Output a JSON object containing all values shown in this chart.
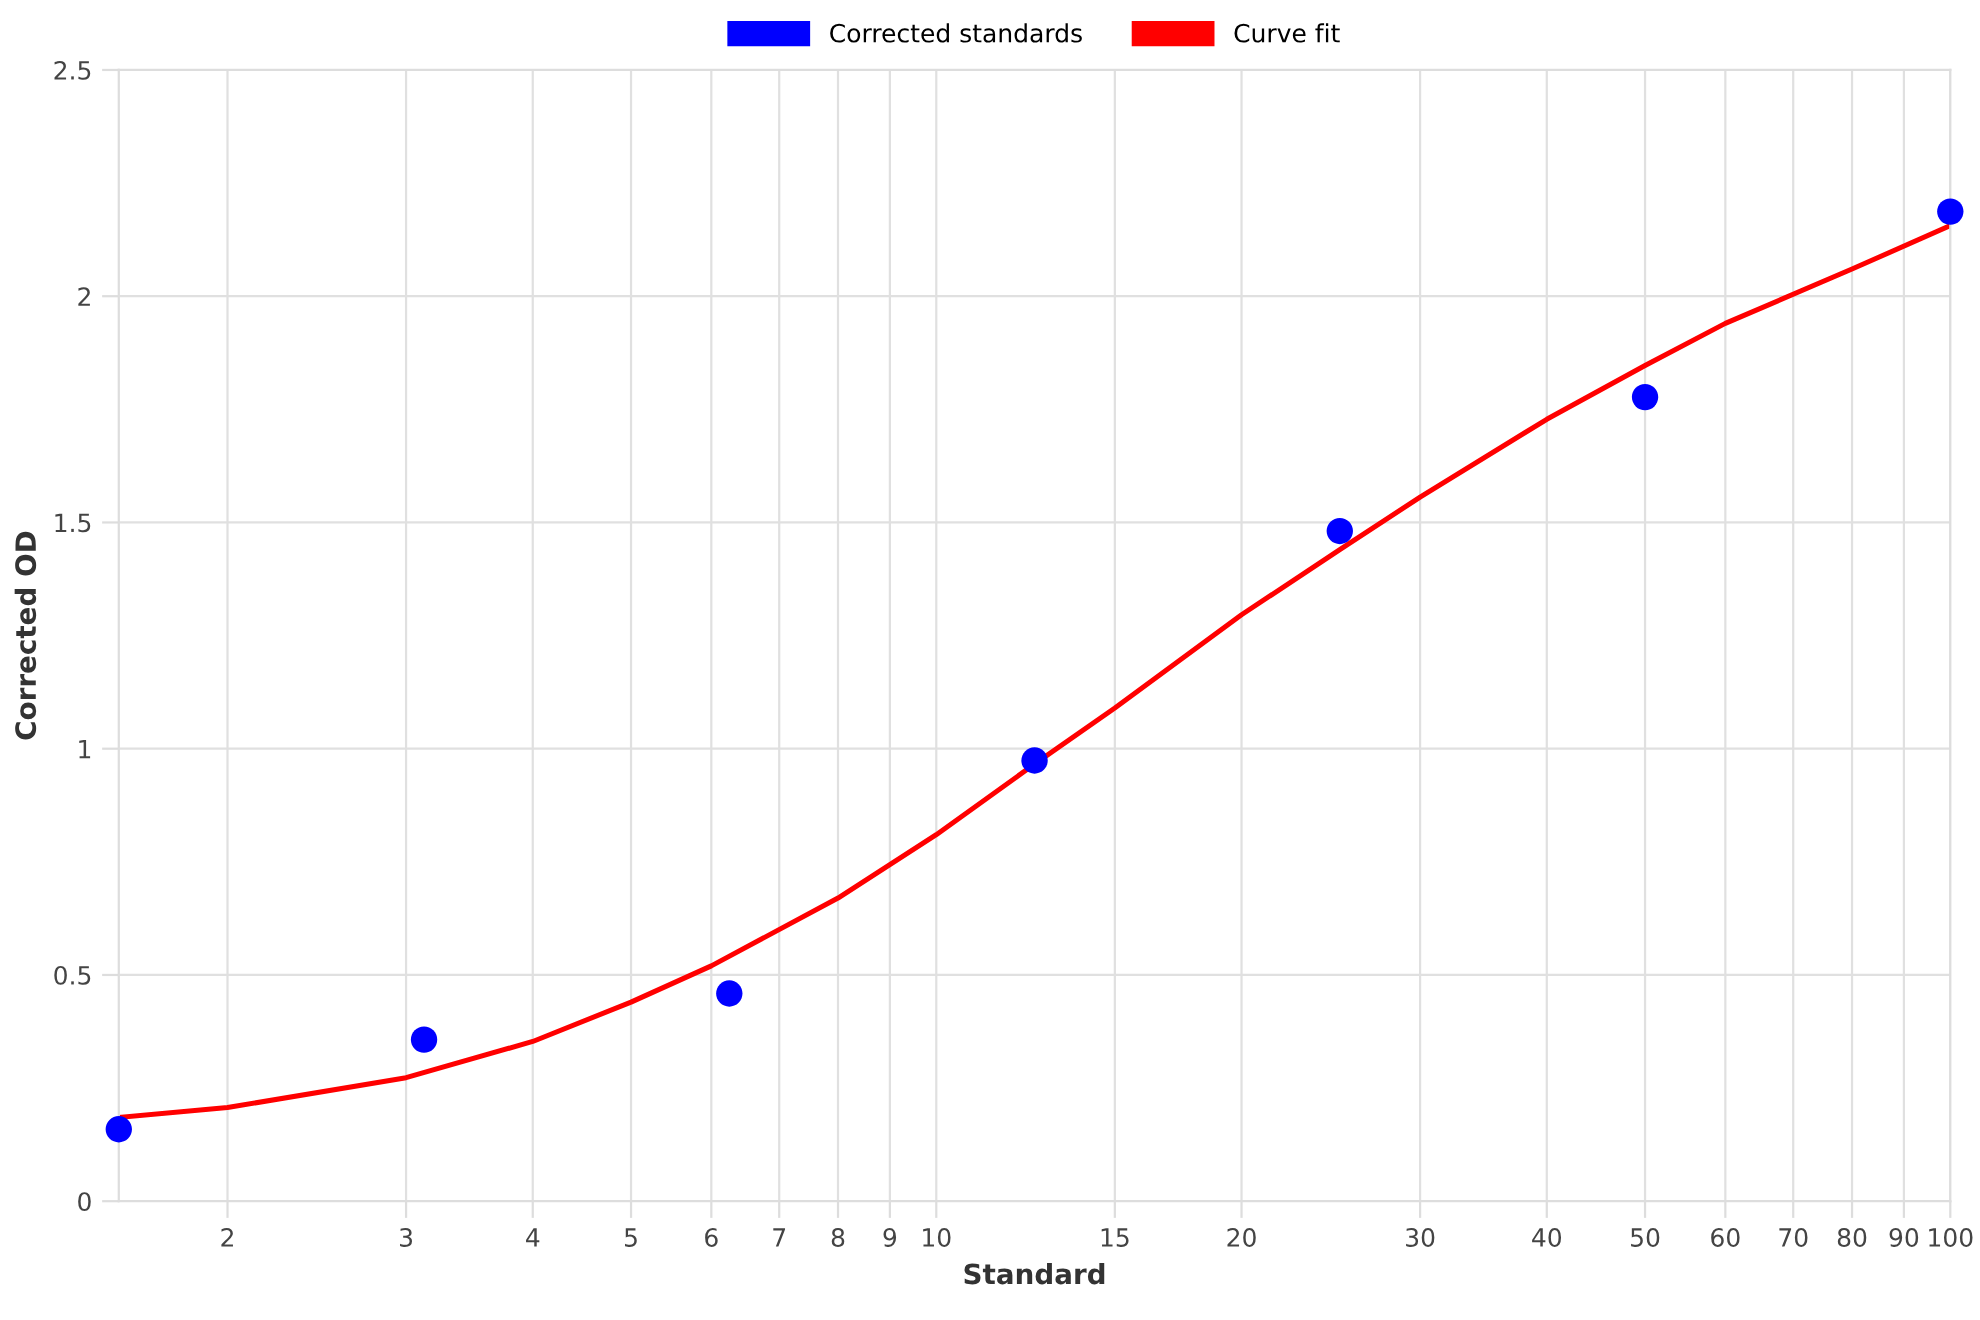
{
  "chart_data": {
    "type": "scatter",
    "xlabel": "Standard",
    "ylabel": "Corrected OD",
    "log": "x",
    "grid": true,
    "legend": "top",
    "xlim": [
      1.5625,
      100
    ],
    "xticks": [
      2,
      3,
      4,
      5,
      6,
      7,
      8,
      9,
      10,
      15,
      20,
      30,
      40,
      50,
      60,
      70,
      80,
      90,
      100
    ],
    "ylim": [
      0,
      2.5
    ],
    "yticks": [
      0,
      0.5,
      1,
      1.5,
      2,
      2.5
    ],
    "series": [
      {
        "name": "Corrected standards",
        "marker": "circle",
        "color": "#0000ff",
        "x": [
          1.5625,
          3.125,
          6.25,
          12.5,
          25,
          50,
          100
        ],
        "values": [
          0.159,
          0.357,
          0.459,
          0.974,
          1.481,
          1.777,
          2.187
        ]
      },
      {
        "name": "Curve fit",
        "type": "line",
        "marker": "none",
        "line_style": "solid",
        "color": "#ff0000",
        "x": [
          1.5625,
          2,
          3,
          4,
          5,
          6,
          8,
          10,
          12.5,
          15,
          20,
          25,
          30,
          40,
          50,
          60,
          80,
          100
        ],
        "values": [
          0.185,
          0.207,
          0.273,
          0.353,
          0.44,
          0.52,
          0.67,
          0.81,
          0.966,
          1.09,
          1.296,
          1.44,
          1.556,
          1.728,
          1.847,
          1.94,
          2.06,
          2.156
        ]
      }
    ]
  }
}
